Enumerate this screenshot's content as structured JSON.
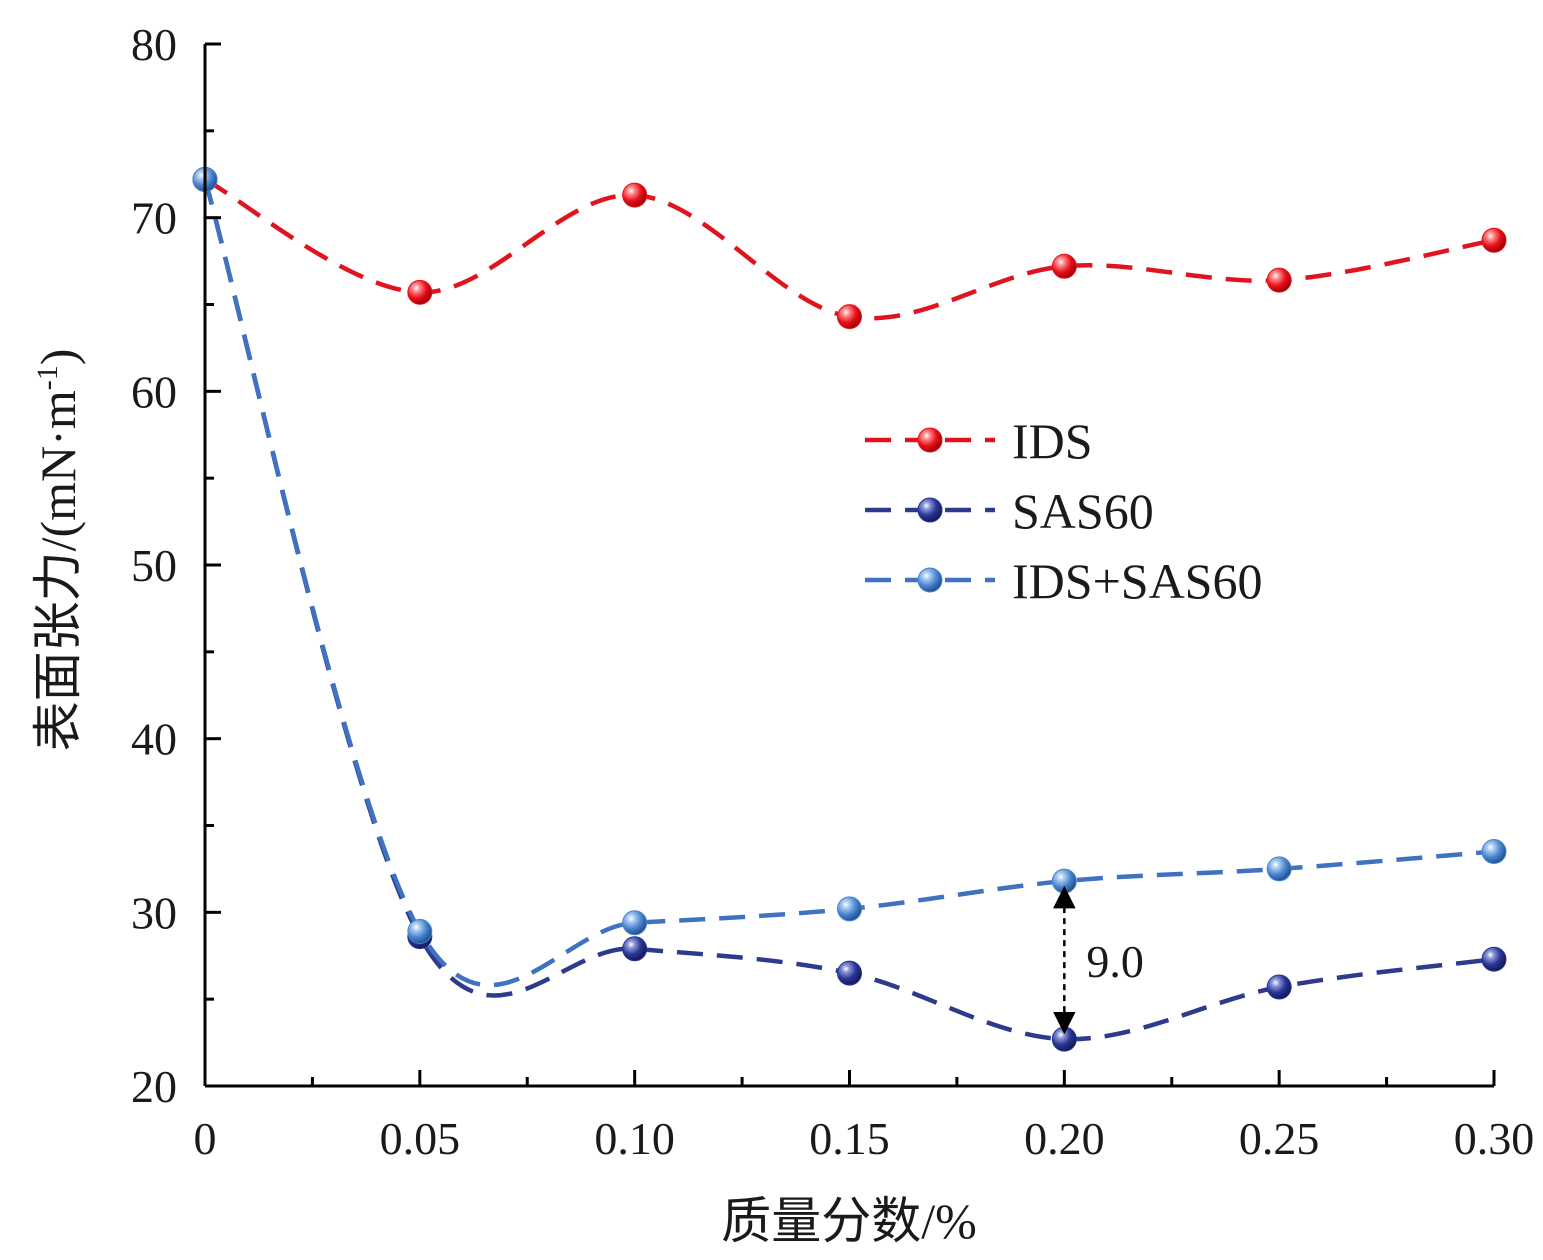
{
  "chart_data": {
    "type": "line",
    "xlabel": "质量分数/%",
    "ylabel": "表面张力/(mN·m",
    "ylabel_sup": "-1",
    "ylabel_close": ")",
    "xlim": [
      0,
      0.3
    ],
    "ylim": [
      20,
      80
    ],
    "x_ticks": [
      0,
      0.05,
      0.1,
      0.15,
      0.2,
      0.25,
      0.3
    ],
    "x_tick_labels": [
      "0",
      "0.05",
      "0.10",
      "0.15",
      "0.20",
      "0.25",
      "0.30"
    ],
    "y_ticks": [
      20,
      30,
      40,
      50,
      60,
      70,
      80
    ],
    "y_tick_labels": [
      "20",
      "30",
      "40",
      "50",
      "60",
      "70",
      "80"
    ],
    "x": [
      0,
      0.05,
      0.1,
      0.15,
      0.2,
      0.25,
      0.3
    ],
    "series": [
      {
        "name": "IDS",
        "color": "#e0141e",
        "marker": "#e8101a",
        "values": [
          72.2,
          65.7,
          71.3,
          64.3,
          67.2,
          66.4,
          68.7
        ]
      },
      {
        "name": "SAS60",
        "color": "#2e3a8c",
        "marker": "#283593",
        "values": [
          72.2,
          28.6,
          27.9,
          26.5,
          22.7,
          25.7,
          27.3
        ]
      },
      {
        "name": "IDS+SAS60",
        "color": "#3f72c0",
        "marker": "#4a86cf",
        "values": [
          72.2,
          28.9,
          29.4,
          30.2,
          31.8,
          32.5,
          33.5
        ]
      }
    ],
    "annotations": [
      {
        "text": "9.0",
        "x": 0.2,
        "y_from": 22.7,
        "y_to": 31.8
      }
    ],
    "legend": "center-right",
    "grid": false
  }
}
